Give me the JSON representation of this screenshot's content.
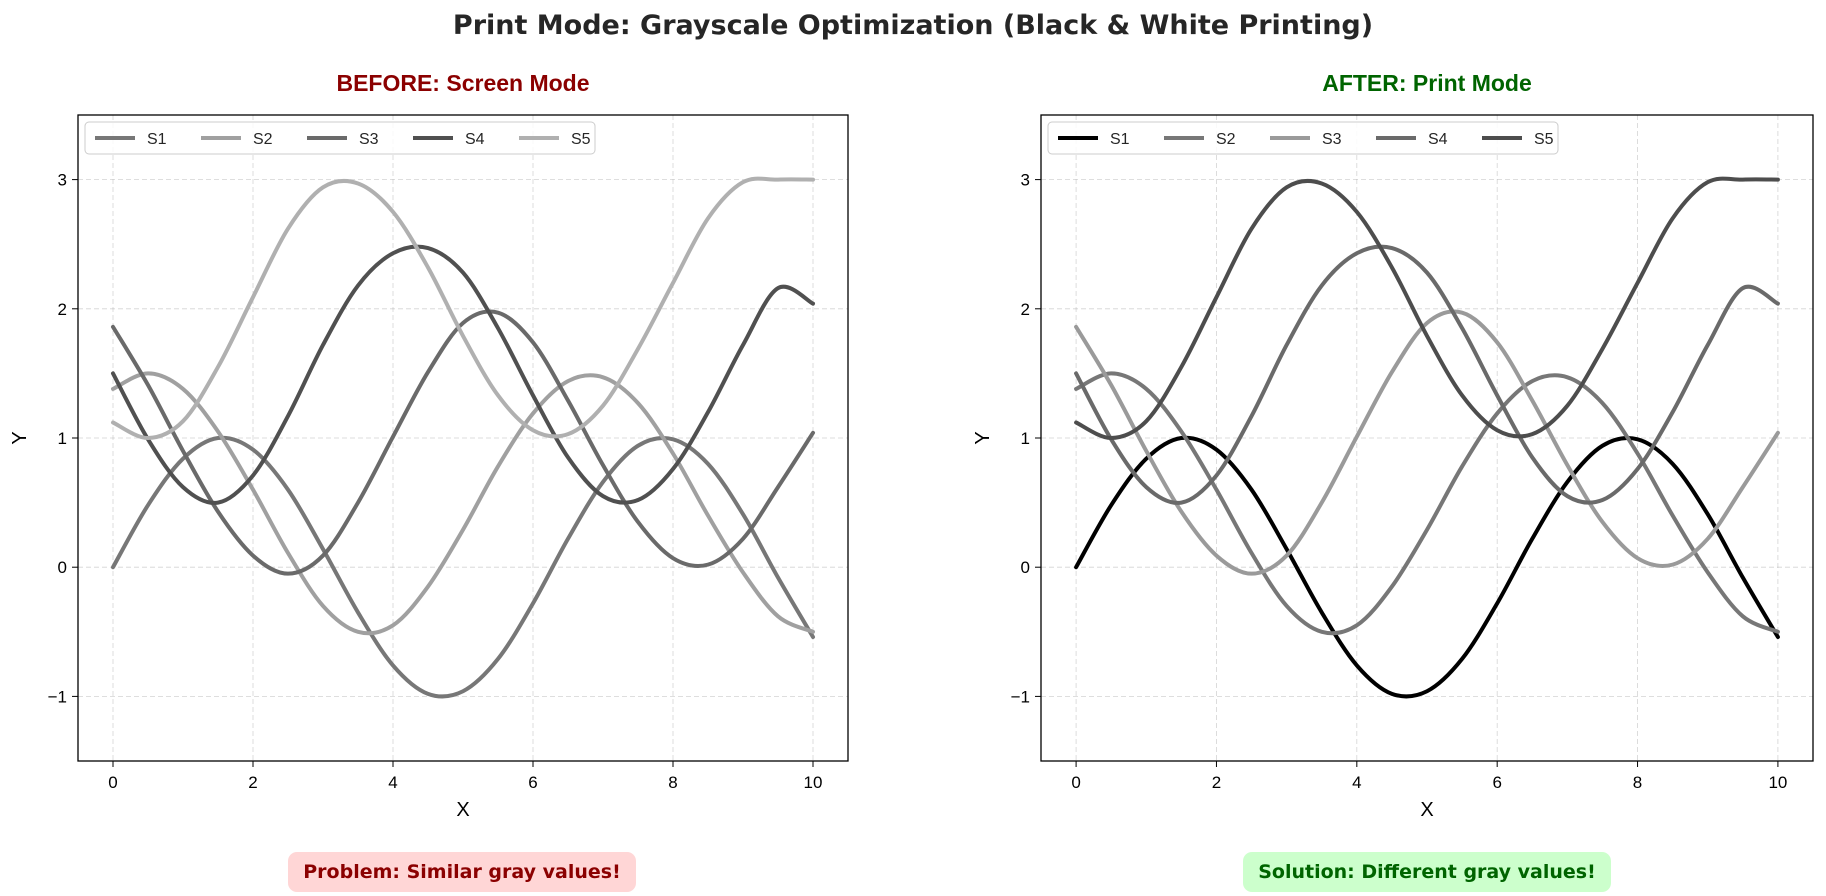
{
  "figure": {
    "title": "Print Mode: Grayscale Optimization (Black & White Printing)"
  },
  "panels": [
    {
      "title": "BEFORE: Screen Mode",
      "title_color": "#8b0000",
      "note": "Problem: Similar gray values!",
      "note_text_color": "#8b0000",
      "note_bg_color": "#ffd6d6"
    },
    {
      "title": "AFTER: Print Mode",
      "title_color": "#006400",
      "note": "Solution: Different gray values!",
      "note_text_color": "#006400",
      "note_bg_color": "#ccffcc"
    }
  ],
  "chart_data": [
    {
      "type": "line",
      "title": "BEFORE: Screen Mode",
      "xlabel": "X",
      "ylabel": "Y",
      "xlim": [
        -0.5,
        10.5
      ],
      "ylim": [
        -1.5,
        3.5
      ],
      "xticks": [
        0,
        2,
        4,
        6,
        8,
        10
      ],
      "yticks": [
        -1,
        0,
        1,
        2,
        3
      ],
      "xtick_labels": [
        "0",
        "2",
        "4",
        "6",
        "8",
        "10"
      ],
      "ytick_labels": [
        "−1",
        "0",
        "1",
        "2",
        "3"
      ],
      "grid": true,
      "legend_position": "top-left",
      "x": [
        0,
        0.5,
        1,
        1.5,
        2,
        2.5,
        3,
        3.5,
        4,
        4.5,
        5,
        5.5,
        6,
        6.5,
        7,
        7.5,
        8,
        8.5,
        9,
        9.5,
        10
      ],
      "series": [
        {
          "name": "S1",
          "color": "#777777",
          "values": [
            0,
            0.48,
            0.84,
            1,
            0.91,
            0.6,
            0.14,
            -0.35,
            -0.76,
            -0.98,
            -0.96,
            -0.71,
            -0.28,
            0.22,
            0.66,
            0.94,
            0.99,
            0.8,
            0.41,
            -0.08,
            -0.54
          ]
        },
        {
          "name": "S2",
          "color": "#a0a0a0",
          "values": [
            1.38,
            1.5,
            1.38,
            1.05,
            0.6,
            0.11,
            -0.3,
            -0.5,
            -0.45,
            -0.15,
            0.29,
            0.78,
            1.19,
            1.44,
            1.47,
            1.27,
            0.88,
            0.4,
            -0.04,
            -0.38,
            -0.5
          ]
        },
        {
          "name": "S3",
          "color": "#6a6a6a",
          "values": [
            1.86,
            1.41,
            0.9,
            0.43,
            0.09,
            -0.05,
            0.09,
            0.5,
            1.01,
            1.51,
            1.89,
            1.97,
            1.74,
            1.29,
            0.79,
            0.35,
            0.07,
            0.02,
            0.22,
            0.62,
            1.04
          ]
        },
        {
          "name": "S4",
          "color": "#505050",
          "values": [
            1.5,
            0.99,
            0.62,
            0.5,
            0.71,
            1.17,
            1.72,
            2.18,
            2.43,
            2.47,
            2.28,
            1.85,
            1.33,
            0.85,
            0.55,
            0.52,
            0.76,
            1.2,
            1.72,
            2.16,
            2.04
          ]
        },
        {
          "name": "S5",
          "color": "#b0b0b0",
          "values": [
            1.12,
            1.0,
            1.13,
            1.55,
            2.09,
            2.62,
            2.94,
            2.97,
            2.75,
            2.32,
            1.79,
            1.33,
            1.06,
            1.03,
            1.25,
            1.69,
            2.2,
            2.7,
            2.98,
            3.0,
            3.0
          ]
        }
      ]
    },
    {
      "type": "line",
      "title": "AFTER: Print Mode",
      "xlabel": "X",
      "ylabel": "Y",
      "xlim": [
        -0.5,
        10.5
      ],
      "ylim": [
        -1.5,
        3.5
      ],
      "xticks": [
        0,
        2,
        4,
        6,
        8,
        10
      ],
      "yticks": [
        -1,
        0,
        1,
        2,
        3
      ],
      "xtick_labels": [
        "0",
        "2",
        "4",
        "6",
        "8",
        "10"
      ],
      "ytick_labels": [
        "−1",
        "0",
        "1",
        "2",
        "3"
      ],
      "grid": true,
      "legend_position": "top-left",
      "x": [
        0,
        0.5,
        1,
        1.5,
        2,
        2.5,
        3,
        3.5,
        4,
        4.5,
        5,
        5.5,
        6,
        6.5,
        7,
        7.5,
        8,
        8.5,
        9,
        9.5,
        10
      ],
      "series": [
        {
          "name": "S1",
          "color": "#000000",
          "values": [
            0,
            0.48,
            0.84,
            1,
            0.91,
            0.6,
            0.14,
            -0.35,
            -0.76,
            -0.98,
            -0.96,
            -0.71,
            -0.28,
            0.22,
            0.66,
            0.94,
            0.99,
            0.8,
            0.41,
            -0.08,
            -0.54
          ]
        },
        {
          "name": "S2",
          "color": "#777777",
          "values": [
            1.38,
            1.5,
            1.38,
            1.05,
            0.6,
            0.11,
            -0.3,
            -0.5,
            -0.45,
            -0.15,
            0.29,
            0.78,
            1.19,
            1.44,
            1.47,
            1.27,
            0.88,
            0.4,
            -0.04,
            -0.38,
            -0.5
          ]
        },
        {
          "name": "S3",
          "color": "#9a9a9a",
          "values": [
            1.86,
            1.41,
            0.9,
            0.43,
            0.09,
            -0.05,
            0.09,
            0.5,
            1.01,
            1.51,
            1.89,
            1.97,
            1.74,
            1.29,
            0.79,
            0.35,
            0.07,
            0.02,
            0.22,
            0.62,
            1.04
          ]
        },
        {
          "name": "S4",
          "color": "#6a6a6a",
          "values": [
            1.5,
            0.99,
            0.62,
            0.5,
            0.71,
            1.17,
            1.72,
            2.18,
            2.43,
            2.47,
            2.28,
            1.85,
            1.33,
            0.85,
            0.55,
            0.52,
            0.76,
            1.2,
            1.72,
            2.16,
            2.04
          ]
        },
        {
          "name": "S5",
          "color": "#4d4d4d",
          "values": [
            1.12,
            1.0,
            1.13,
            1.55,
            2.09,
            2.62,
            2.94,
            2.97,
            2.75,
            2.32,
            1.79,
            1.33,
            1.06,
            1.03,
            1.25,
            1.69,
            2.2,
            2.7,
            2.98,
            3.0,
            3.0
          ]
        }
      ]
    }
  ]
}
